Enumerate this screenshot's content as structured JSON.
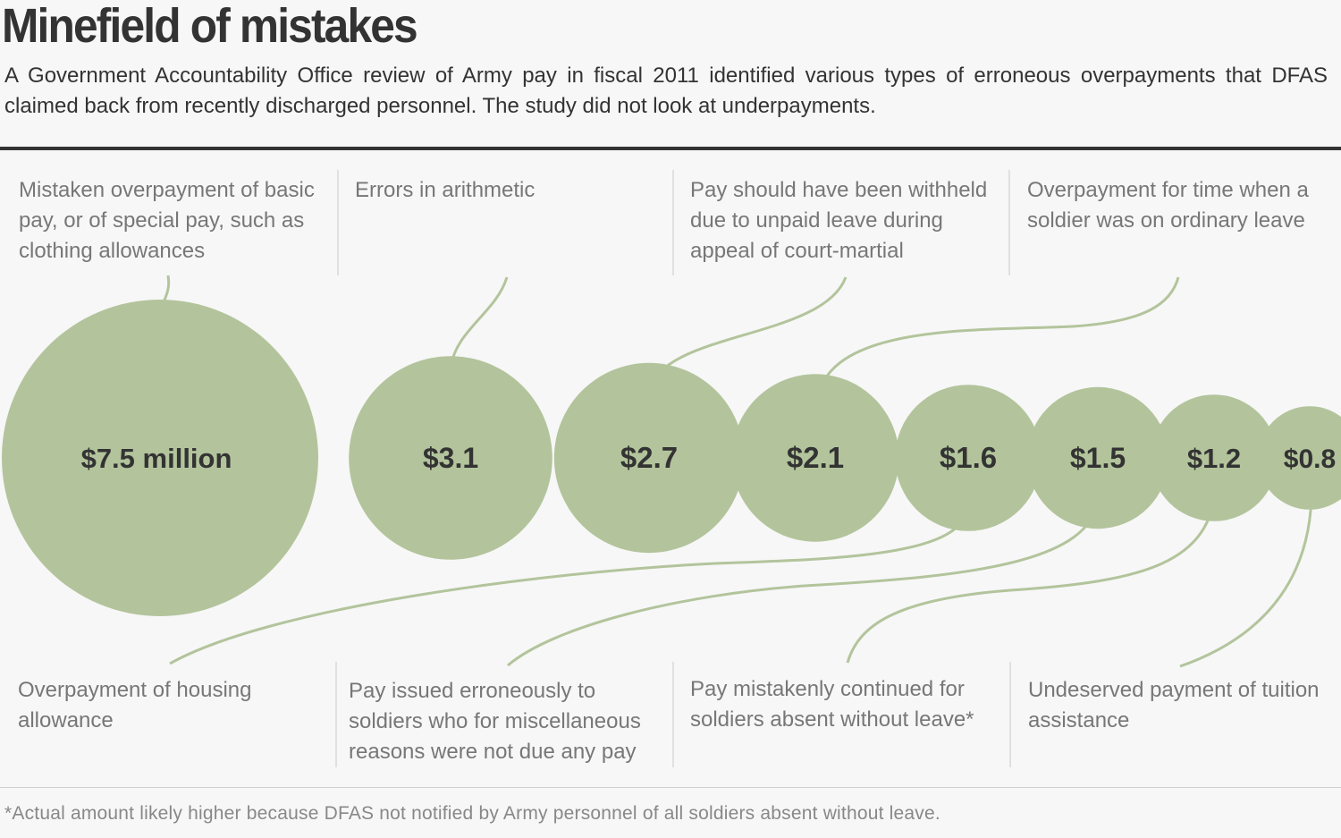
{
  "title": "Minefield of mistakes",
  "subtitle": "A Government Accountability Office review of Army pay in fiscal 2011 identified various types of erroneous overpayments that DFAS claimed back from recently discharged personnel. The study did not look at underpayments.",
  "footnote": "*Actual amount likely higher because DFAS not notified by Army personnel of all soldiers absent without leave.",
  "colors": {
    "bubble": "#b3c49c",
    "connector": "#b3c49c",
    "text": "#333333",
    "label_text": "#777777"
  },
  "chart_data": {
    "type": "bubble",
    "unit": "million",
    "series": [
      {
        "category": "Mistaken overpayment of basic pay, or of special pay, such as clothing allowances",
        "value": 7.5,
        "value_label": "$7.5 million"
      },
      {
        "category": "Errors in arithmetic",
        "value": 3.1,
        "value_label": "$3.1"
      },
      {
        "category": "Pay should have been withheld due to unpaid leave during appeal of court-martial",
        "value": 2.7,
        "value_label": "$2.7"
      },
      {
        "category": "Overpayment for time when a soldier was on ordinary leave",
        "value": 2.1,
        "value_label": "$2.1"
      },
      {
        "category": "Overpayment of housing allowance",
        "value": 1.6,
        "value_label": "$1.6"
      },
      {
        "category": "Pay issued erroneously to soldiers who for miscellaneous reasons were not due any pay",
        "value": 1.5,
        "value_label": "$1.5"
      },
      {
        "category": "Pay mistakenly continued for soldiers absent without leave*",
        "value": 1.2,
        "value_label": "$1.2"
      },
      {
        "category": "Undeserved payment of tuition assistance",
        "value": 0.8,
        "value_label": "$0.8"
      }
    ]
  },
  "labels": {
    "top": [
      "Mistaken overpayment of basic pay, or of special pay, such as clothing allowances",
      "Errors in arithmetic",
      "Pay should have been withheld due to unpaid leave during appeal of court-martial",
      "Overpayment for time when a soldier was on ordinary leave"
    ],
    "bottom": [
      "Overpayment of housing allowance",
      "Pay issued erroneously to soldiers who for miscellaneous reasons were not due any pay",
      "Pay mistakenly continued for soldiers absent without leave*",
      "Undeserved payment of tuition assistance"
    ]
  }
}
